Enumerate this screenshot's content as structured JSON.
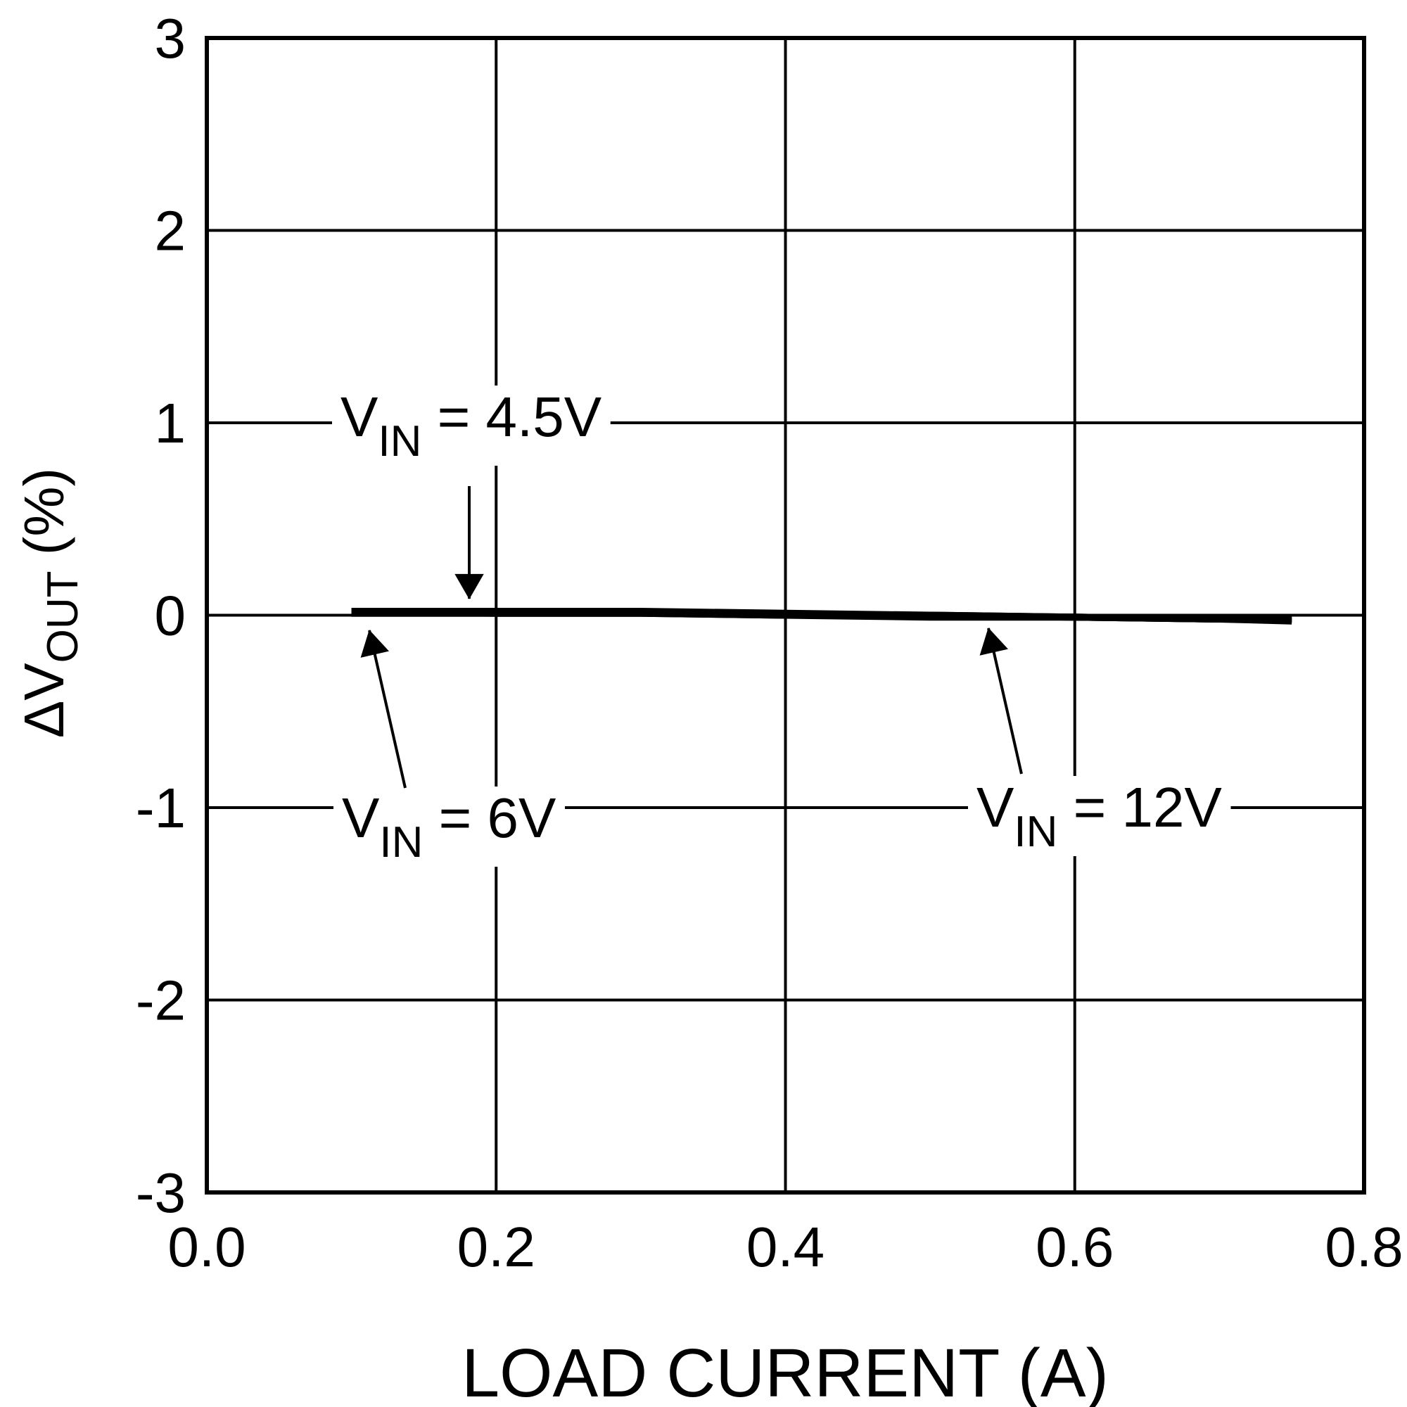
{
  "chart_data": {
    "type": "line",
    "xlabel": "LOAD CURRENT (A)",
    "ylabel": [
      "ΔV",
      "OUT",
      " (%)"
    ],
    "xlim": [
      0,
      0.8
    ],
    "xticks": [
      {
        "value": 0,
        "label": "0.0"
      },
      0.2,
      0.4,
      0.6,
      0.8
    ],
    "ylim": [
      -3,
      3
    ],
    "yticks": [
      -3,
      -2,
      -1,
      0,
      1,
      2,
      3
    ],
    "grid": true,
    "x": [
      0.1,
      0.2,
      0.3,
      0.4,
      0.5,
      0.6,
      0.7,
      0.75
    ],
    "series": [
      {
        "label": [
          "V",
          "IN",
          " = 4.5V"
        ],
        "color": "#000000",
        "values": [
          0.02,
          0.02,
          0.02,
          0.01,
          0.0,
          -0.01,
          -0.02,
          -0.02
        ]
      },
      {
        "label": [
          "V",
          "IN",
          " = 6V"
        ],
        "color": "#000000",
        "values": [
          0.01,
          0.01,
          0.01,
          0.0,
          -0.01,
          -0.01,
          -0.02,
          -0.02
        ]
      },
      {
        "label": [
          "V",
          "IN",
          " = 12V"
        ],
        "color": "#000000",
        "values": [
          0.02,
          0.01,
          0.01,
          0.0,
          0.0,
          -0.01,
          -0.02,
          -0.03
        ]
      }
    ]
  }
}
